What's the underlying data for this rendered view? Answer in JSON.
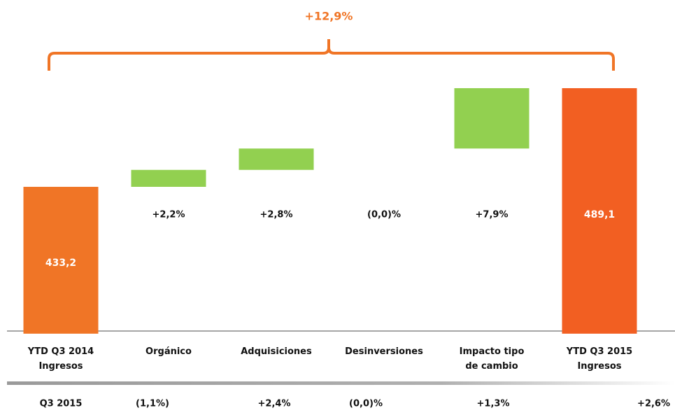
{
  "chart_data": {
    "type": "waterfall",
    "annotation": "+12,9%",
    "categories": [
      "YTD Q3 2014\nIngresos",
      "Orgánico",
      "Adquisiciones",
      "Desinversiones",
      "Impacto tipo\nde cambio",
      "YTD Q3 2015\nIngresos"
    ],
    "values": [
      433.2,
      9.6,
      12.1,
      0,
      34.2,
      489.1
    ],
    "value_labels": [
      "433,2",
      null,
      null,
      null,
      null,
      "489,1"
    ],
    "growth_labels": [
      null,
      "+2,2%",
      "+2,8%",
      "(0,0)%",
      "+7,9%",
      null
    ],
    "totals": [
      true,
      false,
      false,
      false,
      false,
      true
    ],
    "colors": [
      "#F07526",
      "#92D050",
      "#92D050",
      "#92D050",
      "#92D050",
      "#F25F22"
    ],
    "ylim": [
      350,
      500
    ],
    "q3_row": {
      "label": "Q3 2015",
      "values": [
        "(1,1%)",
        "+2,4%",
        "(0,0)%",
        "+1,3%",
        "+2,6%"
      ]
    }
  }
}
